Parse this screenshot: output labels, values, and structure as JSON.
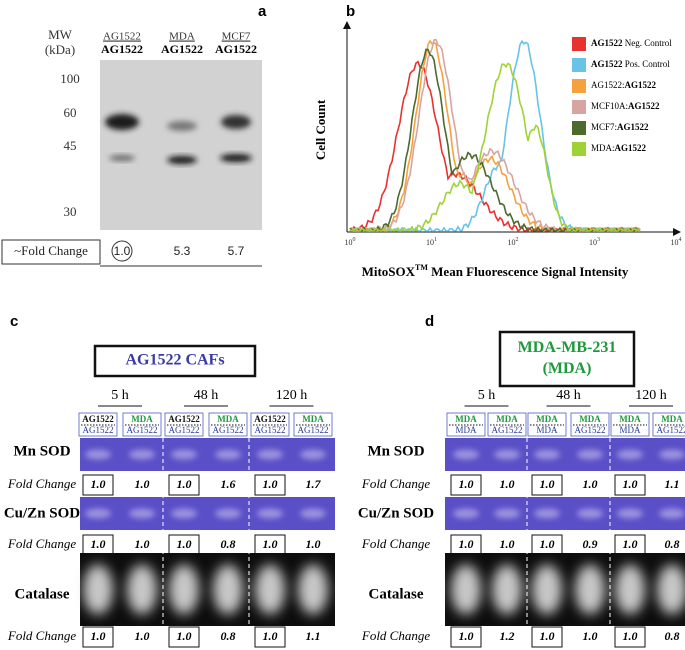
{
  "panel_a": {
    "label": "a",
    "mw_label": [
      "MW",
      "(kDa)"
    ],
    "lanes": [
      {
        "top": "AG1522",
        "bottom": "AG1522"
      },
      {
        "top": "MDA",
        "bottom": "AG1522"
      },
      {
        "top": "MCF7",
        "bottom": "AG1522"
      }
    ],
    "mw_markers": [
      "100",
      "60",
      "45",
      "30"
    ],
    "fold_change_label": "~Fold Change",
    "fold_changes": [
      "1.0",
      "5.3",
      "5.7"
    ]
  },
  "panel_b": {
    "label": "b",
    "y_label": "Cell Count",
    "x_label": {
      "pre": "MitoSOX",
      "sup": "TM",
      "post": " Mean Fluorescence Signal Intensity"
    },
    "x_ticks": [
      {
        "base": "10",
        "exp": "0"
      },
      {
        "base": "10",
        "exp": "1"
      },
      {
        "base": "10",
        "exp": "2"
      },
      {
        "base": "10",
        "exp": "3"
      },
      {
        "base": "10",
        "exp": "4"
      }
    ],
    "legend": [
      {
        "color": "#e8322f",
        "bold": "AG1522",
        "post": " Neg. Control"
      },
      {
        "color": "#68c3e8",
        "bold": "AG1522",
        "post": " Pos. Control"
      },
      {
        "color": "#f6a13e",
        "pre": "AG1522:",
        "bold": "AG1522"
      },
      {
        "color": "#d8a4a2",
        "pre": "MCF10A:",
        "bold": "AG1522"
      },
      {
        "color": "#4b6a2b",
        "pre": "MCF7:",
        "bold": "AG1522"
      },
      {
        "color": "#9fd335",
        "pre": "MDA:",
        "bold": "AG1522"
      }
    ]
  },
  "panel_c": {
    "label": "c",
    "title": [
      "AG1522 CAFs"
    ],
    "title_color": "#3a3aa6",
    "times": [
      "5 h",
      "48 h",
      "120 h"
    ],
    "lanes": [
      {
        "top": "AG1522",
        "bottom": "AG1522",
        "color": "#111111"
      },
      {
        "top": "MDA",
        "bottom": "AG1522",
        "color": "#1e9a3c"
      },
      {
        "top": "AG1522",
        "bottom": "AG1522",
        "color": "#111111"
      },
      {
        "top": "MDA",
        "bottom": "AG1522",
        "color": "#1e9a3c"
      },
      {
        "top": "AG1522",
        "bottom": "AG1522",
        "color": "#111111"
      },
      {
        "top": "MDA",
        "bottom": "AG1522",
        "color": "#1e9a3c"
      }
    ],
    "rows": [
      {
        "name": "Mn SOD",
        "color": "#5a4fc6",
        "fold_label": "Fold Change",
        "values": [
          "1.0",
          "1.0",
          "1.0",
          "1.6",
          "1.0",
          "1.7"
        ]
      },
      {
        "name": "Cu/Zn SOD",
        "color": "#5a4fc6",
        "fold_label": "Fold Change",
        "values": [
          "1.0",
          "1.0",
          "1.0",
          "0.8",
          "1.0",
          "1.0"
        ]
      },
      {
        "name": "Catalase",
        "color": "#0d0d0d",
        "fold_label": "Fold Change",
        "values": [
          "1.0",
          "1.0",
          "1.0",
          "0.8",
          "1.0",
          "1.1"
        ]
      }
    ]
  },
  "panel_d": {
    "label": "d",
    "title": [
      "MDA-MB-231",
      "(MDA)"
    ],
    "title_color": "#1e9a3c",
    "times": [
      "5 h",
      "48 h",
      "120 h"
    ],
    "lanes": [
      {
        "top": "MDA",
        "bottom": "MDA",
        "color": "#1e9a3c"
      },
      {
        "top": "MDA",
        "bottom": "AG1522",
        "color": "#1e9a3c"
      },
      {
        "top": "MDA",
        "bottom": "MDA",
        "color": "#1e9a3c"
      },
      {
        "top": "MDA",
        "bottom": "AG1522",
        "color": "#1e9a3c"
      },
      {
        "top": "MDA",
        "bottom": "MDA",
        "color": "#1e9a3c"
      },
      {
        "top": "MDA",
        "bottom": "AG1522",
        "color": "#1e9a3c"
      }
    ],
    "rows": [
      {
        "name": "Mn SOD",
        "color": "#5a4fc6",
        "fold_label": "Fold Change",
        "values": [
          "1.0",
          "1.0",
          "1.0",
          "1.0",
          "1.0",
          "1.1"
        ]
      },
      {
        "name": "Cu/Zn SOD",
        "color": "#5a4fc6",
        "fold_label": "Fold Change",
        "values": [
          "1.0",
          "1.0",
          "1.0",
          "0.9",
          "1.0",
          "0.8"
        ]
      },
      {
        "name": "Catalase",
        "color": "#0d0d0d",
        "fold_label": "Fold Change",
        "values": [
          "1.0",
          "1.2",
          "1.0",
          "1.0",
          "1.0",
          "0.8"
        ]
      }
    ]
  }
}
